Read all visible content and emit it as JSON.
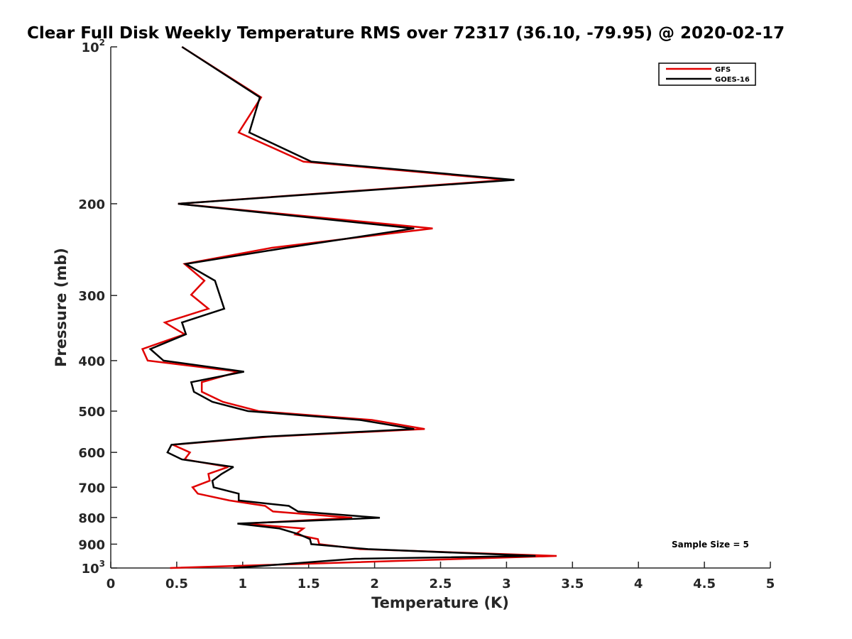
{
  "chart_data": {
    "type": "line",
    "title": "Clear Full Disk Weekly Temperature RMS over 72317 (36.10, -79.95) @ 2020-02-17",
    "xlabel": "Temperature (K)",
    "ylabel": "Pressure (mb)",
    "xlim": [
      0,
      5
    ],
    "ylim": [
      100,
      1000
    ],
    "y_scale": "log",
    "y_reversed": true,
    "grid": false,
    "legend_position": "top-right",
    "x_ticks": [
      "0",
      "0.5",
      "1",
      "1.5",
      "2",
      "2.5",
      "3",
      "3.5",
      "4",
      "4.5",
      "5"
    ],
    "y_ticks": [
      {
        "value": 100,
        "base": "10",
        "exp": "2"
      },
      {
        "value": 200,
        "label": "200"
      },
      {
        "value": 300,
        "label": "300"
      },
      {
        "value": 400,
        "label": "400"
      },
      {
        "value": 500,
        "label": "500"
      },
      {
        "value": 600,
        "label": "600"
      },
      {
        "value": 700,
        "label": "700"
      },
      {
        "value": 800,
        "label": "800"
      },
      {
        "value": 900,
        "label": "900"
      },
      {
        "value": 1000,
        "base": "10",
        "exp": "3"
      }
    ],
    "annotation": "Sample Size = 5",
    "series": [
      {
        "name": "GFS",
        "color": "#e00000",
        "points": [
          [
            0.54,
            100
          ],
          [
            1.14,
            125
          ],
          [
            0.97,
            146
          ],
          [
            1.46,
            166
          ],
          [
            3.0,
            180
          ],
          [
            0.51,
            200
          ],
          [
            2.44,
            223
          ],
          [
            1.22,
            243
          ],
          [
            0.56,
            261
          ],
          [
            0.71,
            281
          ],
          [
            0.61,
            299
          ],
          [
            0.74,
            318
          ],
          [
            0.41,
            338
          ],
          [
            0.56,
            356
          ],
          [
            0.24,
            380
          ],
          [
            0.28,
            400
          ],
          [
            0.97,
            420
          ],
          [
            0.69,
            440
          ],
          [
            0.69,
            459
          ],
          [
            0.85,
            480
          ],
          [
            1.12,
            500
          ],
          [
            1.98,
            520
          ],
          [
            2.38,
            541
          ],
          [
            1.19,
            560
          ],
          [
            0.47,
            580
          ],
          [
            0.6,
            600
          ],
          [
            0.56,
            619
          ],
          [
            0.89,
            640
          ],
          [
            0.74,
            660
          ],
          [
            0.75,
            680
          ],
          [
            0.62,
            700
          ],
          [
            0.66,
            720
          ],
          [
            0.9,
            742
          ],
          [
            1.17,
            760
          ],
          [
            1.23,
            779
          ],
          [
            1.83,
            801
          ],
          [
            1.01,
            822
          ],
          [
            1.46,
            840
          ],
          [
            1.4,
            862
          ],
          [
            1.57,
            880
          ],
          [
            1.58,
            900
          ],
          [
            1.89,
            920
          ],
          [
            3.38,
            948
          ],
          [
            0.45,
            1000
          ]
        ]
      },
      {
        "name": "GOES-16",
        "color": "#000000",
        "points": [
          [
            0.54,
            100
          ],
          [
            1.13,
            125
          ],
          [
            1.05,
            146
          ],
          [
            1.52,
            166
          ],
          [
            3.06,
            180
          ],
          [
            0.51,
            200
          ],
          [
            2.3,
            223
          ],
          [
            1.33,
            243
          ],
          [
            0.57,
            261
          ],
          [
            0.79,
            281
          ],
          [
            0.86,
            318
          ],
          [
            0.54,
            338
          ],
          [
            0.57,
            356
          ],
          [
            0.3,
            380
          ],
          [
            0.4,
            400
          ],
          [
            1.01,
            420
          ],
          [
            0.61,
            440
          ],
          [
            0.63,
            459
          ],
          [
            0.77,
            480
          ],
          [
            1.04,
            500
          ],
          [
            1.89,
            520
          ],
          [
            2.3,
            541
          ],
          [
            1.15,
            560
          ],
          [
            0.46,
            580
          ],
          [
            0.43,
            600
          ],
          [
            0.54,
            619
          ],
          [
            0.93,
            640
          ],
          [
            0.84,
            660
          ],
          [
            0.77,
            680
          ],
          [
            0.78,
            700
          ],
          [
            0.97,
            720
          ],
          [
            0.97,
            742
          ],
          [
            1.35,
            760
          ],
          [
            1.42,
            779
          ],
          [
            2.04,
            801
          ],
          [
            0.96,
            822
          ],
          [
            1.28,
            840
          ],
          [
            1.43,
            862
          ],
          [
            1.51,
            880
          ],
          [
            1.52,
            900
          ],
          [
            1.95,
            920
          ],
          [
            3.22,
            948
          ],
          [
            1.85,
            960
          ],
          [
            0.93,
            1000
          ]
        ]
      }
    ]
  }
}
